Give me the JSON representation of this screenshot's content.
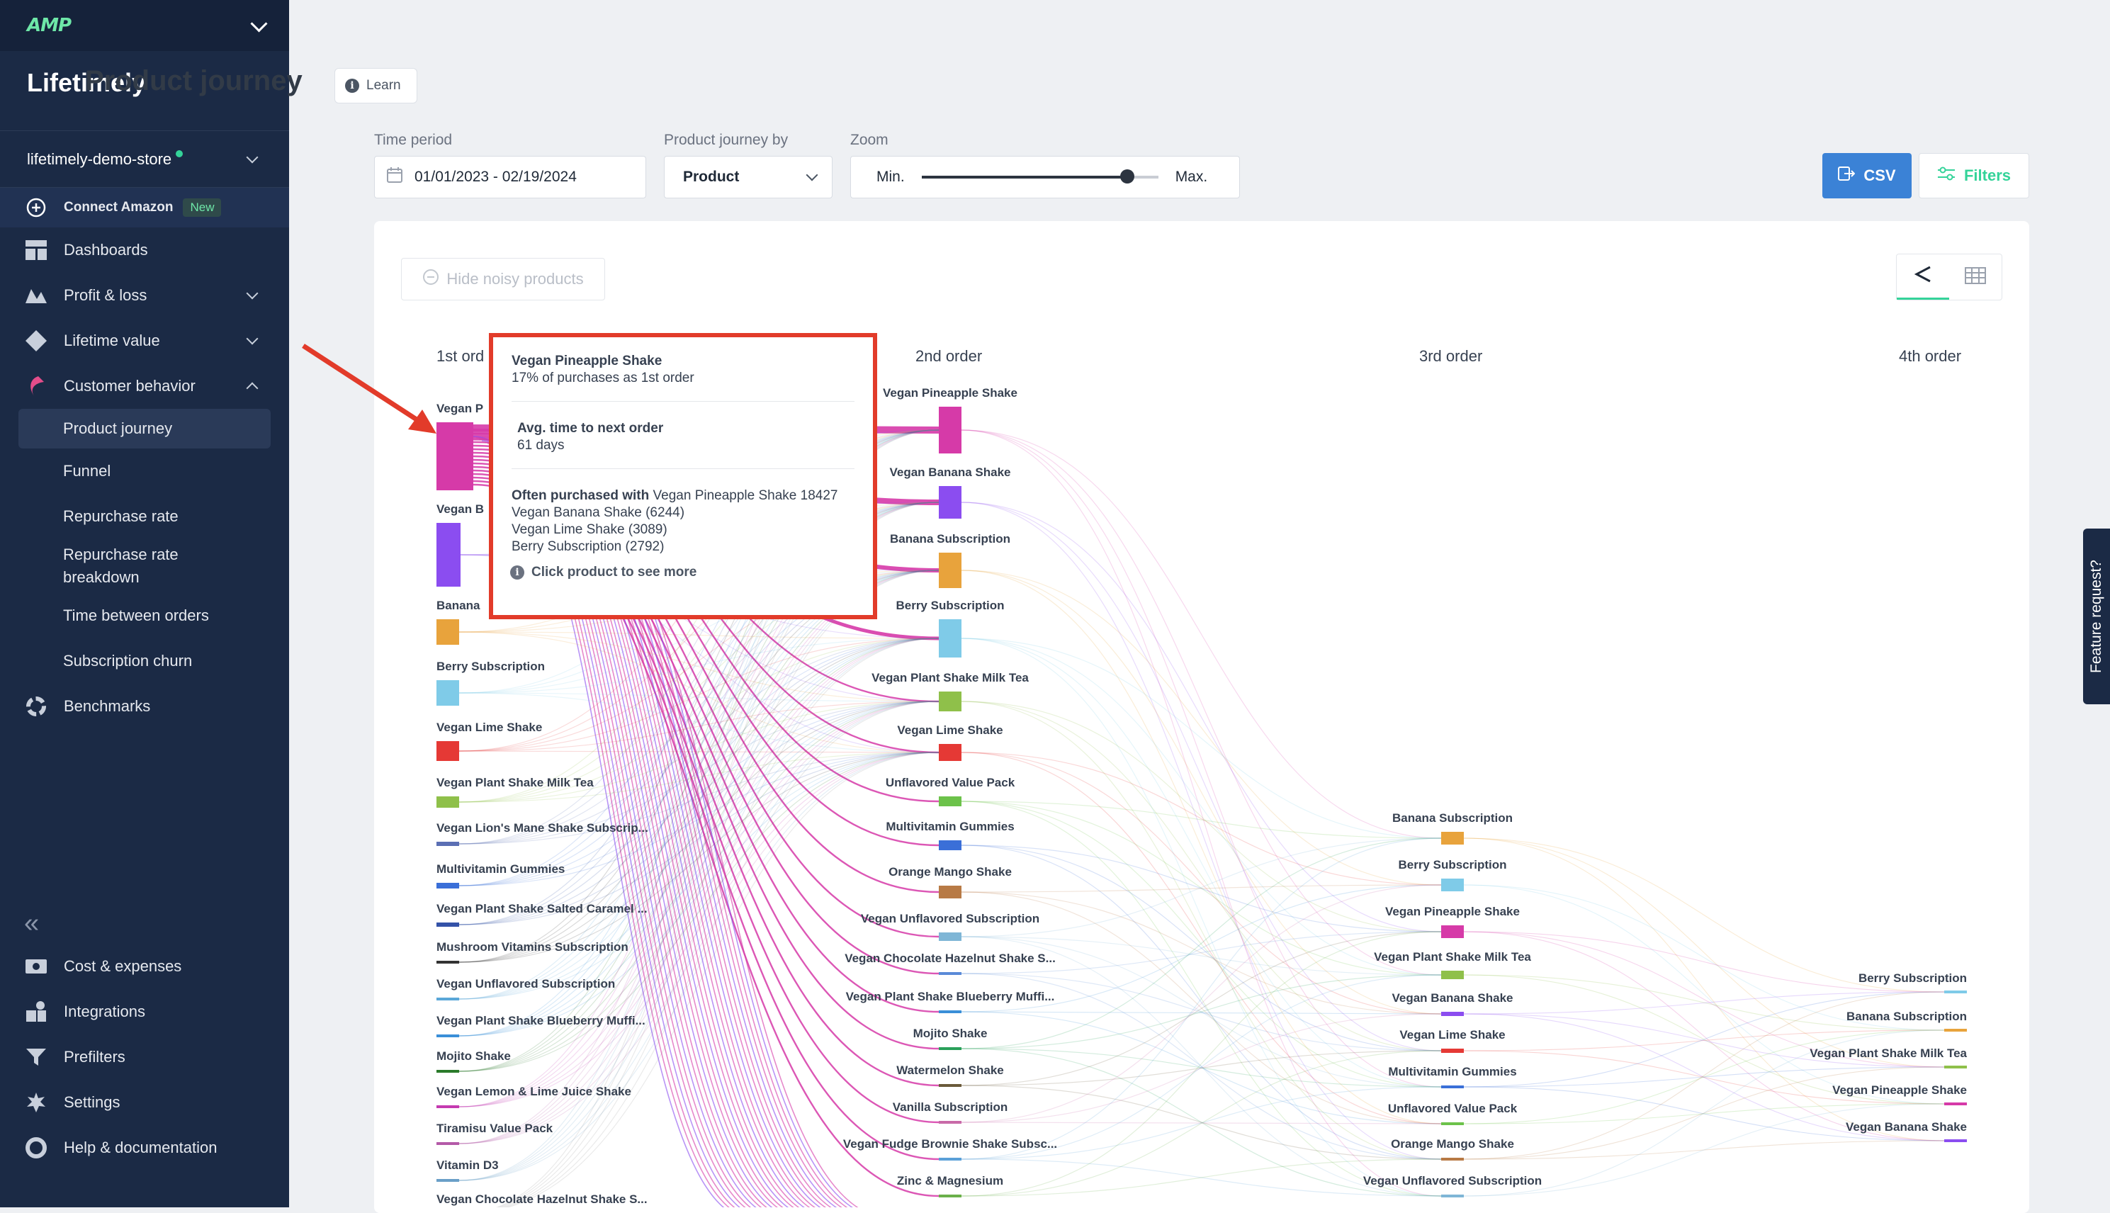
{
  "sidebar": {
    "logo": "AMP",
    "brand": "Lifetimely",
    "store": "lifetimely-demo-store",
    "connect_amazon": "Connect Amazon",
    "new_badge": "New",
    "nav": [
      "Dashboards",
      "Profit & loss",
      "Lifetime value",
      "Customer behavior"
    ],
    "sub": [
      "Product journey",
      "Funnel",
      "Repurchase rate",
      "Repurchase rate breakdown",
      "Time between orders",
      "Subscription churn"
    ],
    "benchmarks": "Benchmarks",
    "bottom": [
      "Cost & expenses",
      "Integrations",
      "Prefilters",
      "Settings",
      "Help & documentation"
    ]
  },
  "header": {
    "title": "Product journey",
    "learn": "Learn"
  },
  "filters": {
    "time_label": "Time period",
    "time_value": "01/01/2023 - 02/19/2024",
    "by_label": "Product journey by",
    "by_value": "Product",
    "zoom_label": "Zoom",
    "zoom_min": "Min.",
    "zoom_max": "Max.",
    "zoom_level": 0.87,
    "csv": "CSV",
    "filters_btn": "Filters"
  },
  "card": {
    "hide_noisy": "Hide noisy products",
    "columns": [
      "1st ord",
      "2nd order",
      "3rd order",
      "4th order"
    ]
  },
  "nodes": {
    "col1": [
      "Vegan P",
      "Vegan B",
      "Banana",
      "Berry Subscription",
      "Vegan Lime Shake",
      "Vegan Plant Shake Milk Tea",
      "Vegan Lion's Mane Shake Subscrip...",
      "Multivitamin Gummies",
      "Vegan Plant Shake Salted Caramel ...",
      "Mushroom Vitamins Subscription",
      "Vegan Unflavored Subscription",
      "Vegan Plant Shake Blueberry Muffi...",
      "Mojito Shake",
      "Vegan Lemon & Lime Juice Shake",
      "Tiramisu Value Pack",
      "Vitamin D3",
      "Vegan Chocolate Hazelnut Shake S..."
    ],
    "col2": [
      "Vegan Pineapple Shake",
      "Vegan Banana Shake",
      "Banana Subscription",
      "Berry Subscription",
      "Vegan Plant Shake Milk Tea",
      "Vegan Lime Shake",
      "Unflavored Value Pack",
      "Multivitamin Gummies",
      "Orange Mango Shake",
      "Vegan Unflavored Subscription",
      "Vegan Chocolate Hazelnut Shake S...",
      "Vegan Plant Shake Blueberry Muffi...",
      "Mojito Shake",
      "Watermelon Shake",
      "Vanilla Subscription",
      "Vegan Fudge Brownie Shake Subsc...",
      "Zinc & Magnesium"
    ],
    "col3": [
      "Banana Subscription",
      "Berry Subscription",
      "Vegan Pineapple Shake",
      "Vegan Plant Shake Milk Tea",
      "Vegan Banana Shake",
      "Vegan Lime Shake",
      "Multivitamin Gummies",
      "Unflavored Value Pack",
      "Orange Mango Shake",
      "Vegan Unflavored Subscription"
    ],
    "col4": [
      "Berry Subscription",
      "Banana Subscription",
      "Vegan Plant Shake Milk Tea",
      "Vegan Pineapple Shake",
      "Vegan Banana Shake"
    ]
  },
  "colors": {
    "pineapple": "#d63aa8",
    "banana_shake": "#8b4df0",
    "banana_sub": "#e8a33c",
    "berry": "#7fcbe8",
    "milk_tea": "#8fc04a",
    "lime": "#e53935",
    "unflavored_pack": "#6cc24a",
    "multivitamin": "#3a6fd8",
    "orange_mango": "#b87a45",
    "unflavored_sub": "#7fb6d6"
  },
  "tooltip": {
    "product": "Vegan Pineapple Shake",
    "pct": "17% of purchases as 1st order",
    "avg_label": "Avg. time to next order",
    "avg_value": "61 days",
    "often_label": "Often purchased with",
    "often_first": "Vegan Pineapple Shake 18427",
    "often_list": [
      "Vegan Banana Shake (6244)",
      "Vegan Lime Shake (3089)",
      "Berry Subscription (2792)"
    ],
    "click_more": "Click product to see more"
  },
  "feature_request": "Feature request?"
}
